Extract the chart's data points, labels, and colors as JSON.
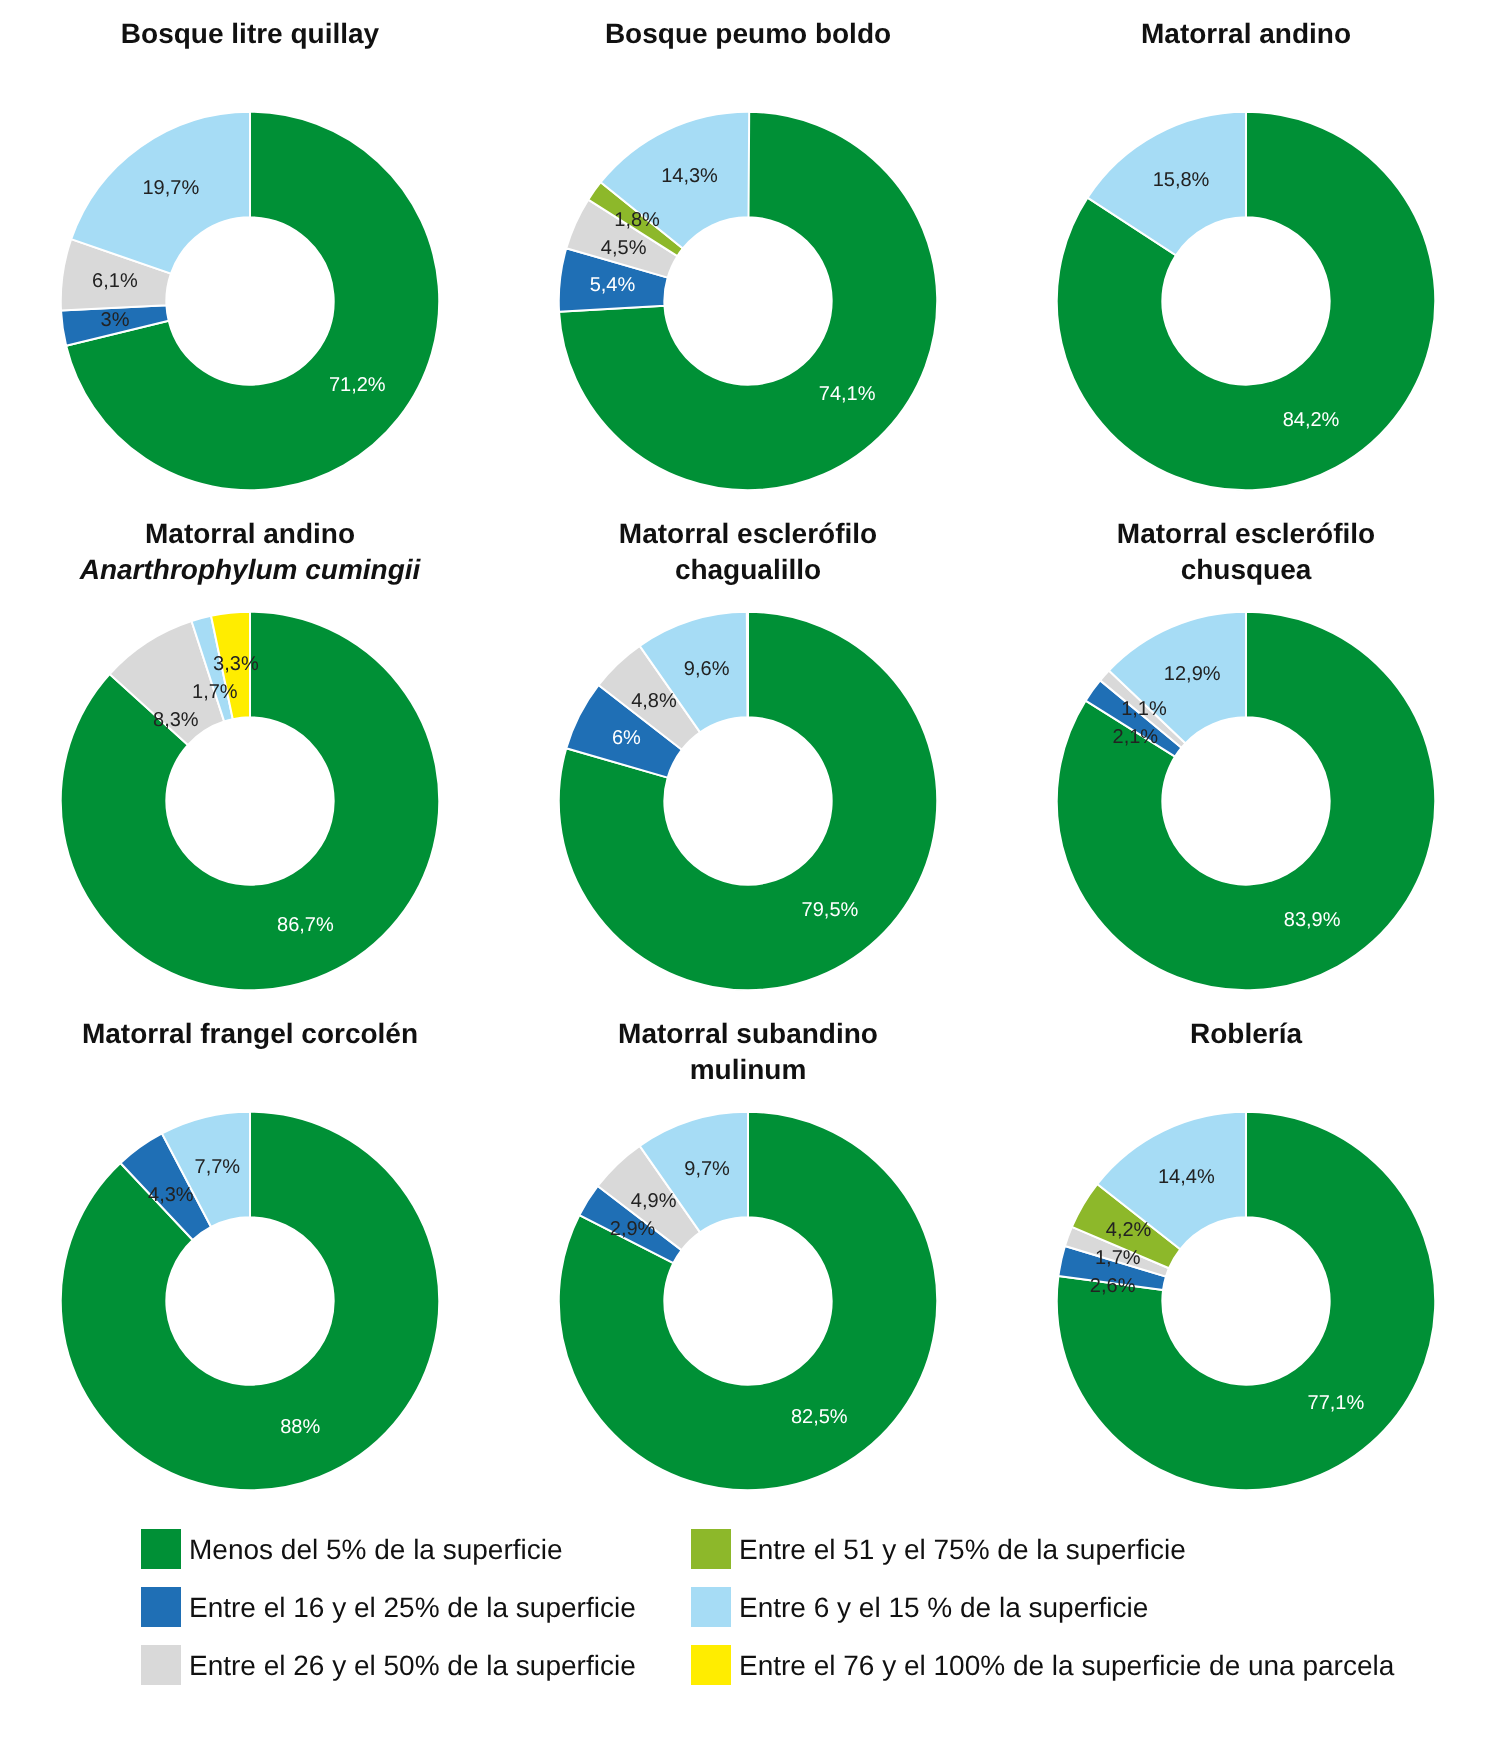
{
  "chart_data": [
    {
      "type": "donut",
      "title": "Bosque litre quillay",
      "legend": "bottom",
      "categories": [
        "Menos del 5% de la superficie",
        "Entre el 16 y el 25% de la superficie",
        "Entre el 26 y el 50% de la superficie",
        "Entre el 51 y el 75% de la superficie",
        "Entre 6 y el 15 % de la superficie",
        "Entre el 76 y el 100% de la superficie de una parcela"
      ],
      "colors": [
        "#009036",
        "#1f6fb5",
        "#d9d9d9",
        "#8db82a",
        "#a6dcf5",
        "#ffed00"
      ],
      "values": [
        71.2,
        3,
        6.1,
        null,
        19.7,
        null
      ],
      "value_labels": [
        "71,2%",
        "3%",
        "6,1%",
        null,
        "19,7%",
        null
      ]
    },
    {
      "type": "donut",
      "title": "Bosque peumo boldo",
      "categories": [
        null,
        null,
        null,
        null,
        null,
        null
      ],
      "colors": [
        "#009036",
        "#1f6fb5",
        "#d9d9d9",
        "#8db82a",
        "#a6dcf5",
        "#ffed00"
      ],
      "values": [
        74.1,
        5.4,
        4.5,
        1.8,
        14.3,
        null
      ],
      "value_labels": [
        "74,1%",
        "5,4%",
        "4,5%",
        "1,8%",
        "14,3%",
        null
      ]
    },
    {
      "type": "donut",
      "title": "Matorral andino",
      "categories": [
        null,
        null,
        null,
        null,
        null,
        null
      ],
      "colors": [
        "#009036",
        "#1f6fb5",
        "#d9d9d9",
        "#8db82a",
        "#a6dcf5",
        "#ffed00"
      ],
      "values": [
        84.2,
        null,
        null,
        null,
        15.8,
        null
      ],
      "value_labels": [
        "84,2%",
        null,
        null,
        null,
        "15,8%",
        null
      ]
    },
    {
      "type": "donut",
      "title": "Matorral andino",
      "subtitle": "Anarthrophylum cumingii",
      "categories": [
        null,
        null,
        null,
        null,
        null,
        null
      ],
      "colors": [
        "#009036",
        "#1f6fb5",
        "#d9d9d9",
        "#8db82a",
        "#a6dcf5",
        "#ffed00"
      ],
      "values": [
        86.7,
        null,
        8.3,
        null,
        1.7,
        3.3
      ],
      "value_labels": [
        "86,7%",
        null,
        "8,3%",
        null,
        "1,7%",
        "3,3%"
      ]
    },
    {
      "type": "donut",
      "title": "Matorral esclerófilo\nchagualillo",
      "categories": [
        null,
        null,
        null,
        null,
        null,
        null
      ],
      "colors": [
        "#009036",
        "#1f6fb5",
        "#d9d9d9",
        "#8db82a",
        "#a6dcf5",
        "#ffed00"
      ],
      "values": [
        79.5,
        6,
        4.8,
        null,
        9.6,
        null
      ],
      "value_labels": [
        "79,5%",
        "6%",
        "4,8%",
        null,
        "9,6%",
        null
      ]
    },
    {
      "type": "donut",
      "title": "Matorral esclerófilo\nchusquea",
      "categories": [
        null,
        null,
        null,
        null,
        null,
        null
      ],
      "colors": [
        "#009036",
        "#1f6fb5",
        "#d9d9d9",
        "#8db82a",
        "#a6dcf5",
        "#ffed00"
      ],
      "values": [
        83.9,
        2.1,
        1.1,
        null,
        12.9,
        null
      ],
      "value_labels": [
        "83,9%",
        "2,1%",
        "1,1%",
        null,
        "12,9%",
        null
      ]
    },
    {
      "type": "donut",
      "title": "Matorral frangel corcolén",
      "categories": [
        null,
        null,
        null,
        null,
        null,
        null
      ],
      "colors": [
        "#009036",
        "#1f6fb5",
        "#d9d9d9",
        "#8db82a",
        "#a6dcf5",
        "#ffed00"
      ],
      "values": [
        88,
        4.3,
        null,
        null,
        7.7,
        null
      ],
      "value_labels": [
        "88%",
        "4,3%",
        null,
        null,
        "7,7%",
        null
      ]
    },
    {
      "type": "donut",
      "title": "Matorral subandino\nmulinum",
      "categories": [
        null,
        null,
        null,
        null,
        null,
        null
      ],
      "colors": [
        "#009036",
        "#1f6fb5",
        "#d9d9d9",
        "#8db82a",
        "#a6dcf5",
        "#ffed00"
      ],
      "values": [
        82.5,
        2.9,
        4.9,
        null,
        9.7,
        null
      ],
      "value_labels": [
        "82,5%",
        "2,9%",
        "4,9%",
        null,
        "9,7%",
        null
      ]
    },
    {
      "type": "donut",
      "title": "Roblería",
      "categories": [
        null,
        null,
        null,
        null,
        null,
        null
      ],
      "colors": [
        "#009036",
        "#1f6fb5",
        "#d9d9d9",
        "#8db82a",
        "#a6dcf5",
        "#ffed00"
      ],
      "values": [
        77.1,
        2.6,
        1.7,
        4.2,
        14.4,
        null
      ],
      "value_labels": [
        "77,1%",
        "2,6%",
        "1,7%",
        "4,2%",
        "14,4%",
        null
      ]
    }
  ]
}
